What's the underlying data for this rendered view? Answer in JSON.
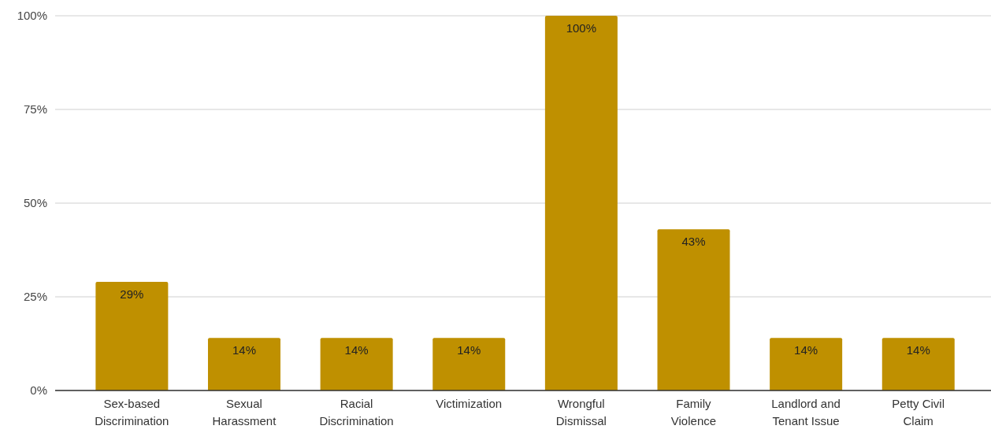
{
  "chart_data": {
    "type": "bar",
    "categories": [
      "Sex-based Discrimination",
      "Sexual Harassment",
      "Racial Discrimination",
      "Victimization",
      "Wrongful Dismissal",
      "Family Violence",
      "Landlord and Tenant Issue",
      "Petty Civil Claim"
    ],
    "values": [
      29,
      14,
      14,
      14,
      100,
      43,
      14,
      14
    ],
    "color": "#bf9000",
    "value_labels": [
      "29%",
      "14%",
      "14%",
      "14%",
      "100%",
      "43%",
      "14%",
      "14%"
    ],
    "ylim": [
      0,
      100
    ],
    "yticks": [
      {
        "value": 0,
        "label": "0%"
      },
      {
        "value": 25,
        "label": "25%"
      },
      {
        "value": 50,
        "label": "50%"
      },
      {
        "value": 75,
        "label": "75%"
      },
      {
        "value": 100,
        "label": "100%"
      }
    ],
    "grid": "y"
  }
}
